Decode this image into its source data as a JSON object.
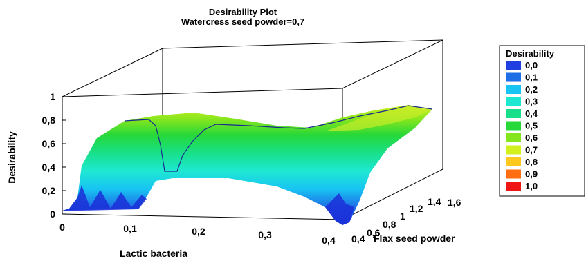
{
  "chart_data": {
    "type": "surface",
    "title": "Desirability Plot",
    "subtitle": "Watercress seed powder=0,7",
    "xlabel": "Lactic bacteria",
    "ylabel": "Flax seed powder",
    "zlabel": "Desirability",
    "x_ticks": [
      "0",
      "0,1",
      "0,2",
      "0,3",
      "0,4"
    ],
    "y_ticks": [
      "0,4",
      "0,6",
      "0,8",
      "1",
      "1,2",
      "1,4",
      "1,6"
    ],
    "z_ticks": [
      "0",
      "0,2",
      "0,4",
      "0,6",
      "0,8",
      "1"
    ],
    "xlim": [
      0,
      0.4
    ],
    "ylim": [
      0.4,
      1.6
    ],
    "zlim": [
      0,
      1
    ],
    "front_profile": {
      "x": [
        0,
        0.01,
        0.02,
        0.03,
        0.05,
        0.08,
        0.1,
        0.12,
        0.14,
        0.16,
        0.2,
        0.25,
        0.3,
        0.33,
        0.35,
        0.36,
        0.37,
        0.38,
        0.39,
        0.4
      ],
      "z": [
        0,
        0.02,
        0.05,
        0.15,
        0.12,
        0.16,
        0.18,
        0.2,
        0.21,
        0.21,
        0.22,
        0.22,
        0.21,
        0.2,
        0.15,
        0.02,
        0.0,
        0.0,
        0.0,
        0.0
      ]
    },
    "back_profile": {
      "x": [
        0,
        0.05,
        0.1,
        0.15,
        0.2,
        0.25,
        0.3,
        0.35,
        0.4
      ],
      "z": [
        0.62,
        0.7,
        0.74,
        0.76,
        0.74,
        0.72,
        0.74,
        0.82,
        0.88
      ]
    },
    "legend": {
      "title": "Desirability",
      "position": "right",
      "items": [
        {
          "label": "0,0",
          "color": "#1f3fe0"
        },
        {
          "label": "0,1",
          "color": "#1e6ee6"
        },
        {
          "label": "0,2",
          "color": "#18c4f2"
        },
        {
          "label": "0,3",
          "color": "#1ee8d2"
        },
        {
          "label": "0,4",
          "color": "#18e08a"
        },
        {
          "label": "0,5",
          "color": "#26d838"
        },
        {
          "label": "0,6",
          "color": "#86e61e"
        },
        {
          "label": "0,7",
          "color": "#d2f01e"
        },
        {
          "label": "0,8",
          "color": "#ffc81e"
        },
        {
          "label": "0,9",
          "color": "#ff6e10"
        },
        {
          "label": "1,0",
          "color": "#f01414"
        }
      ]
    },
    "grid": false
  }
}
